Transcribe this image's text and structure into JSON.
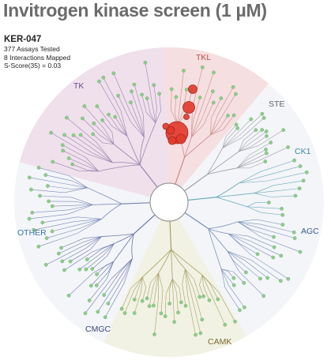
{
  "header": {
    "title": "Invitrogen kinase screen  (1 µM)"
  },
  "info": {
    "compound": "KER-047",
    "assays_tested": "377 Assays Tested",
    "interactions": "8 Interactions Mapped",
    "selectivity": "S-Score(35) = 0.03"
  },
  "groups": [
    {
      "label": "TK",
      "color": "#6b4c8a"
    },
    {
      "label": "TKL",
      "color": "#c0504d"
    },
    {
      "label": "STE",
      "color": "#666666"
    },
    {
      "label": "CK1",
      "color": "#3a8a9a"
    },
    {
      "label": "AGC",
      "color": "#3a5a8a"
    },
    {
      "label": "CAMK",
      "color": "#7a6a30"
    },
    {
      "label": "CMGC",
      "color": "#3a4a7a"
    },
    {
      "label": "OTHER",
      "color": "#3a7ab0"
    }
  ],
  "colors": {
    "hit": "#e23b2e",
    "non_hit": "#8fcf8a",
    "tk_bg": "#efe0ec",
    "tkl_bg": "#f6dfe0",
    "branch_tk": "#9a85b0",
    "branch_tkl": "#c98a8c",
    "branch_ste": "#a0a0a8",
    "branch_ck1": "#6aa8b8",
    "branch_agc": "#7a90b8",
    "branch_camk": "#a8a060",
    "branch_cmgc": "#6a78a8",
    "branch_other": "#7a8ab8"
  }
}
